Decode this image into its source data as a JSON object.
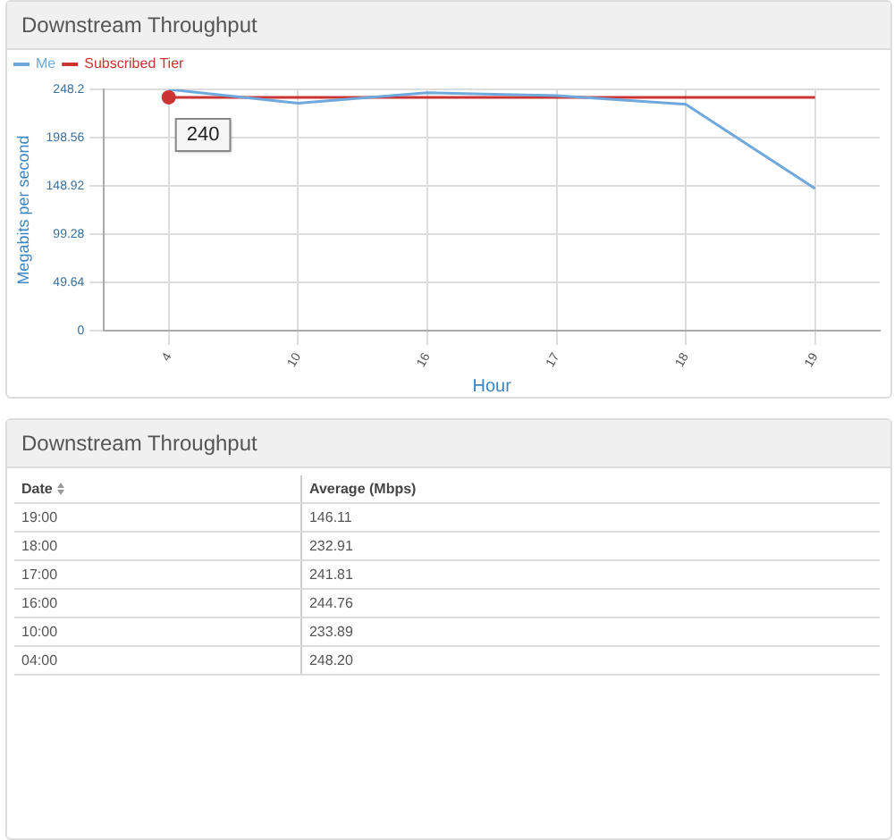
{
  "chart_data": {
    "type": "line",
    "title": "Downstream Throughput",
    "xlabel": "Hour",
    "ylabel": "Megabits per second",
    "categories": [
      "4",
      "10",
      "16",
      "17",
      "18",
      "19"
    ],
    "series": [
      {
        "name": "Me",
        "color": "#6fa8dc",
        "values": [
          248.2,
          233.89,
          244.76,
          241.81,
          232.91,
          146.11
        ]
      },
      {
        "name": "Subscribed Tier",
        "color": "#cc3333",
        "values": [
          240,
          240,
          240,
          240,
          240,
          240
        ]
      }
    ],
    "ylim": [
      0,
      248.2
    ],
    "yticks": [
      0,
      49.64,
      99.28,
      148.92,
      198.56,
      248.2
    ],
    "grid": true,
    "legend": "top left",
    "marker": "none",
    "line_style": "solid",
    "annotations": [
      {
        "text": "240",
        "x": "4",
        "y": 240
      },
      "Downstream Throughput",
      "Date",
      "Average (Mbps)",
      "19:00",
      "146.11",
      "18:00",
      "232.91",
      "17:00",
      "241.81",
      "16:00",
      "244.76",
      "10:00",
      "233.89",
      "04:00",
      "248.20"
    ]
  }
}
